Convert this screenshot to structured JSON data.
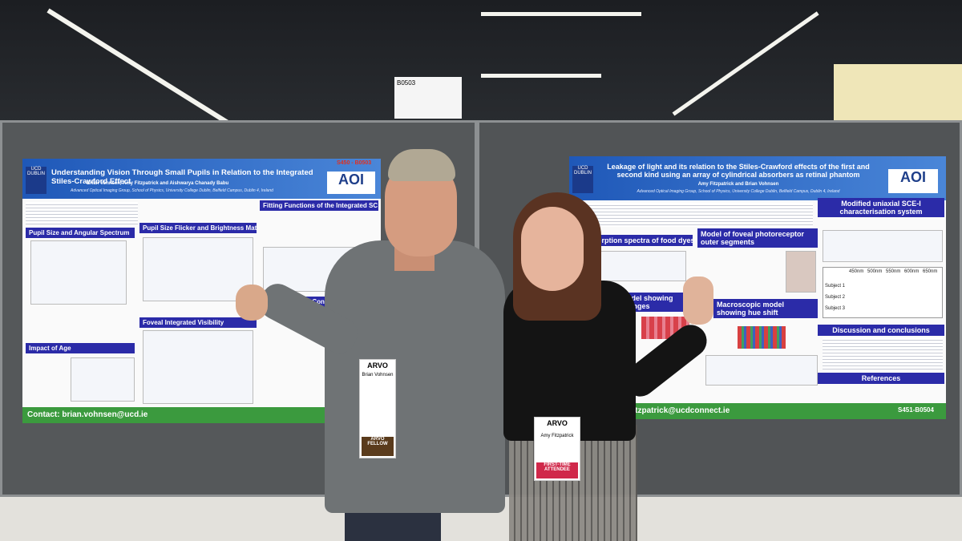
{
  "sign": "B0503",
  "left_poster": {
    "board": "S450 - B0503",
    "logo": "UCD DUBLIN",
    "group_logo": "AOI",
    "title": "Understanding Vision Through Small Pupils in Relation to the Integrated Stiles-Crawford Effect",
    "authors": "Brian Vohnsen, Amy Fitzpatrick and Aishwarya Chanady Babu",
    "affiliation": "Advanced Optical Imaging Group, School of Physics, University College Dublin, Belfield Campus, Dublin 4, Ireland",
    "sections": [
      "Pupil Size and Angular Spectrum",
      "Pupil Size Flicker and Brightness Match",
      "Fitting Functions of the Integrated SC",
      "Discussion and Conclu",
      "Foveal Integrated Visibility",
      "Impact of Age"
    ],
    "contact": "Contact: brian.vohnsen@ucd.ie"
  },
  "right_poster": {
    "board": "S451-B0504",
    "logo": "UCD DUBLIN",
    "group_logo": "AOI",
    "title": "Leakage of light and its relation to the Stiles-Crawford effects of the first and second kind using an array of cylindrical absorbers as retinal phantom",
    "authors": "Amy Fitzpatrick and Brian Vohnsen",
    "affiliation": "Advanced Optical Imaging Group, School of Physics, University College Dublin, Belfield Campus, Dublin 4, Ireland",
    "sections": [
      "Absorption spectra of food dyes",
      "Model of foveal photoreceptor outer segments",
      "Modified uniaxial SCE-I characterisation system",
      "model showing changes",
      "Macroscopic model showing hue shift",
      "Discussion and conclusions",
      "References"
    ],
    "table": {
      "header": [
        "450nm",
        "500nm",
        "550nm",
        "600nm",
        "650nm"
      ],
      "rows": [
        "Subject 1",
        "Subject 2",
        "Subject 3"
      ]
    },
    "contact": "amy.fitzpatrick@ucdconnect.ie"
  },
  "badges": [
    {
      "org": "ARVO",
      "name": "Brian Vohnsen",
      "ribbon": "ARVO FELLOW"
    },
    {
      "org": "ARVO",
      "name": "Amy Fitzpatrick",
      "ribbon": "FIRST-TIME ATTENDEE"
    }
  ]
}
